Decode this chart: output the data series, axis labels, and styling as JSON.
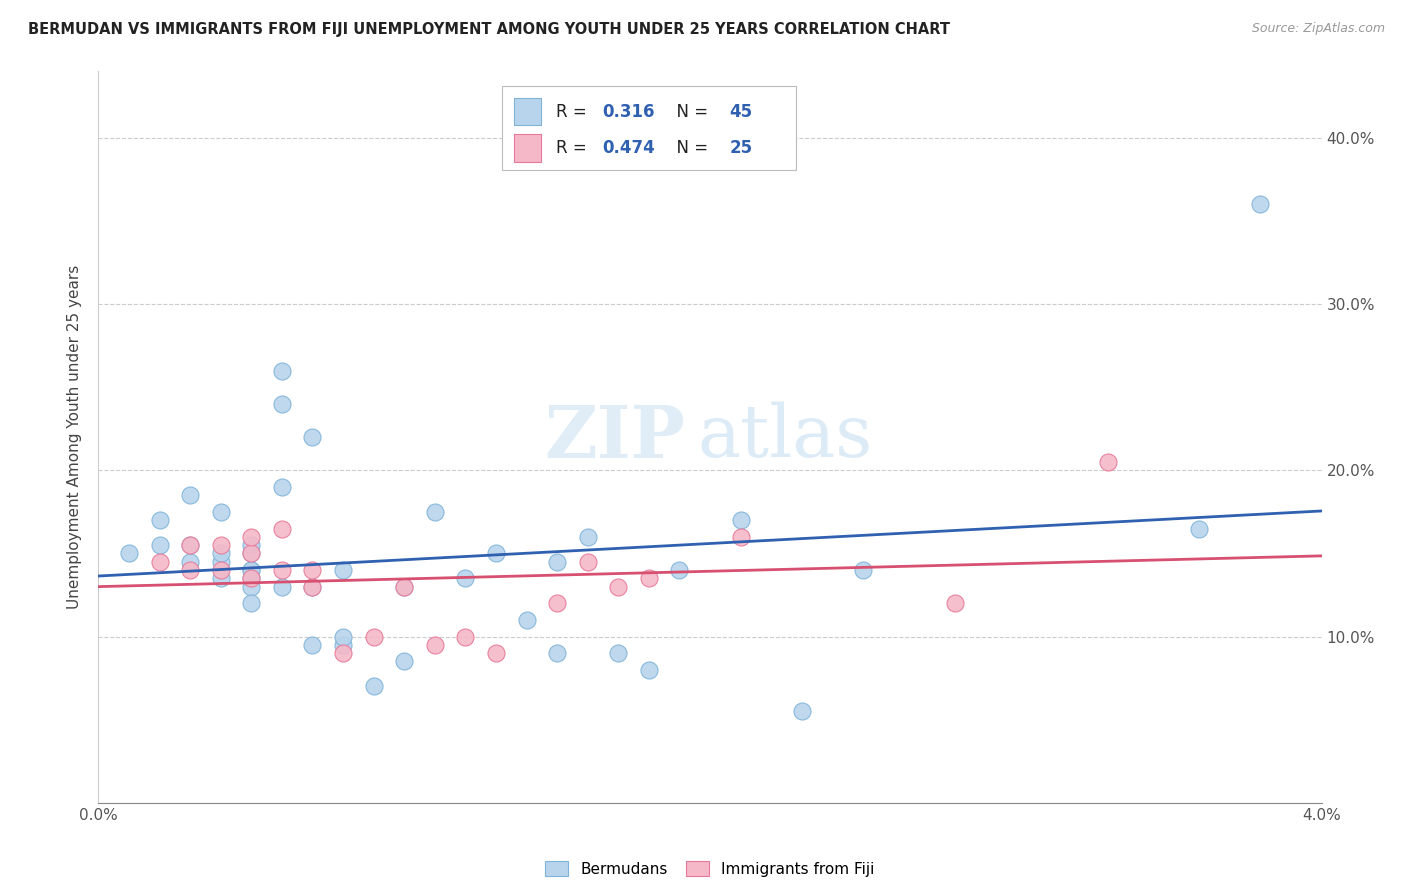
{
  "title": "BERMUDAN VS IMMIGRANTS FROM FIJI UNEMPLOYMENT AMONG YOUTH UNDER 25 YEARS CORRELATION CHART",
  "source": "Source: ZipAtlas.com",
  "ylabel": "Unemployment Among Youth under 25 years",
  "xlim": [
    0.0,
    0.04
  ],
  "ylim": [
    0.0,
    0.44
  ],
  "bermudans_r": 0.316,
  "bermudans_n": 45,
  "fiji_r": 0.474,
  "fiji_n": 25,
  "bermudans_color": "#b8d4ec",
  "bermudans_edge_color": "#7fb3d9",
  "fiji_color": "#f5b8c8",
  "fiji_edge_color": "#e87898",
  "trend_bermudans_color": "#3060b0",
  "trend_fiji_color": "#d85070",
  "watermark_zip": "ZIP",
  "watermark_atlas": "atlas",
  "bermudans_x": [
    0.001,
    0.002,
    0.002,
    0.003,
    0.003,
    0.003,
    0.004,
    0.004,
    0.004,
    0.004,
    0.005,
    0.005,
    0.005,
    0.005,
    0.005,
    0.005,
    0.005,
    0.006,
    0.006,
    0.006,
    0.006,
    0.007,
    0.007,
    0.007,
    0.008,
    0.008,
    0.008,
    0.009,
    0.01,
    0.01,
    0.011,
    0.012,
    0.013,
    0.014,
    0.015,
    0.015,
    0.016,
    0.017,
    0.018,
    0.019,
    0.021,
    0.023,
    0.025,
    0.036,
    0.038
  ],
  "bermudans_y": [
    0.15,
    0.155,
    0.17,
    0.145,
    0.155,
    0.185,
    0.135,
    0.145,
    0.15,
    0.175,
    0.135,
    0.14,
    0.15,
    0.155,
    0.14,
    0.13,
    0.12,
    0.13,
    0.19,
    0.24,
    0.26,
    0.095,
    0.13,
    0.22,
    0.095,
    0.1,
    0.14,
    0.07,
    0.085,
    0.13,
    0.175,
    0.135,
    0.15,
    0.11,
    0.09,
    0.145,
    0.16,
    0.09,
    0.08,
    0.14,
    0.17,
    0.055,
    0.14,
    0.165,
    0.36
  ],
  "fiji_x": [
    0.002,
    0.003,
    0.003,
    0.004,
    0.004,
    0.005,
    0.005,
    0.005,
    0.006,
    0.006,
    0.007,
    0.007,
    0.008,
    0.009,
    0.01,
    0.011,
    0.012,
    0.013,
    0.015,
    0.016,
    0.017,
    0.018,
    0.021,
    0.028,
    0.033
  ],
  "fiji_y": [
    0.145,
    0.14,
    0.155,
    0.14,
    0.155,
    0.135,
    0.15,
    0.16,
    0.14,
    0.165,
    0.13,
    0.14,
    0.09,
    0.1,
    0.13,
    0.095,
    0.1,
    0.09,
    0.12,
    0.145,
    0.13,
    0.135,
    0.16,
    0.12,
    0.205
  ]
}
